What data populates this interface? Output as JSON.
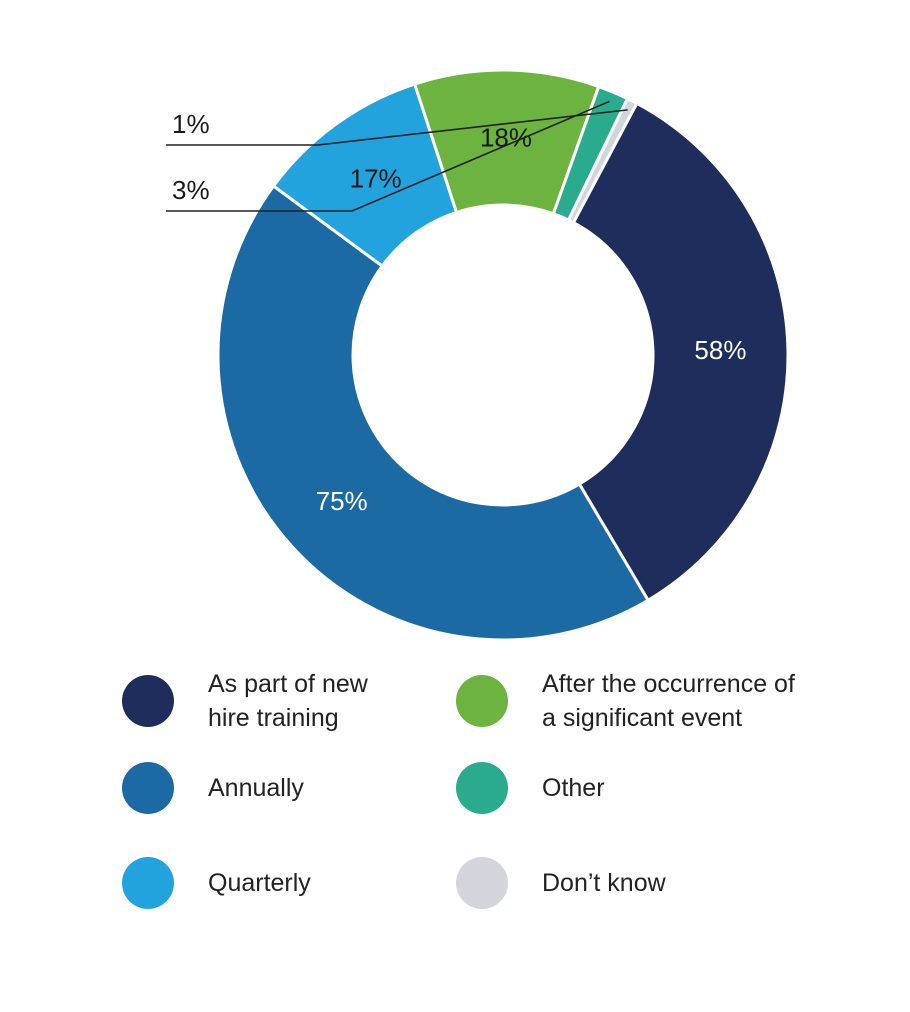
{
  "chart_data": {
    "type": "pie",
    "variant": "donut",
    "legend_position": "bottom",
    "slices": [
      {
        "name": "As part of new hire training",
        "value": 58,
        "label": "58%",
        "color": "#1f2d5c"
      },
      {
        "name": "Annually",
        "value": 75,
        "label": "75%",
        "color": "#1c6aa3"
      },
      {
        "name": "Quarterly",
        "value": 17,
        "label": "17%",
        "color": "#22a3de"
      },
      {
        "name": "After the occurrence of a significant event",
        "value": 18,
        "label": "18%",
        "color": "#6cb33f"
      },
      {
        "name": "Other",
        "value": 3,
        "label": "3%",
        "color": "#2aab8e"
      },
      {
        "name": "Don’t know",
        "value": 1,
        "label": "1%",
        "color": "#d2d6dc"
      }
    ],
    "legend": [
      {
        "label": "As part of new hire training",
        "color": "#1f2d5c"
      },
      {
        "label": "After the occurrence of a significant event",
        "color": "#6cb33f"
      },
      {
        "label": "Annually",
        "color": "#1c6aa3"
      },
      {
        "label": "Other",
        "color": "#2aab8e"
      },
      {
        "label": "Quarterly",
        "color": "#22a3de"
      },
      {
        "label": "Don’t know",
        "color": "#d2d6dc"
      }
    ]
  }
}
